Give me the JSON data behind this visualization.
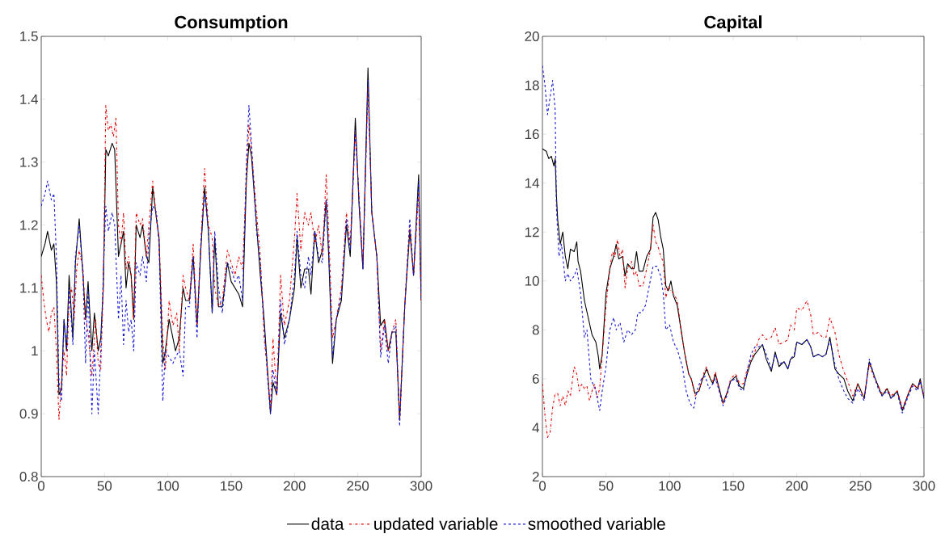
{
  "chart_data": [
    {
      "type": "line",
      "title": "Consumption",
      "xlim": [
        0,
        300
      ],
      "ylim": [
        0.8,
        1.5
      ],
      "xticks": [
        0,
        50,
        100,
        150,
        200,
        250,
        300
      ],
      "yticks": [
        0.8,
        0.9,
        1,
        1.1,
        1.2,
        1.3,
        1.4,
        1.5
      ],
      "legend": "bottom",
      "series": [
        {
          "name": "data",
          "color": "#000000",
          "line_style": "solid",
          "x": [
            0,
            3,
            5,
            8,
            10,
            12,
            14,
            16,
            18,
            20,
            22,
            25,
            27,
            30,
            33,
            35,
            37,
            40,
            42,
            45,
            47,
            49,
            51,
            53,
            56,
            58,
            61,
            63,
            65,
            67,
            69,
            71,
            73,
            75,
            78,
            80,
            83,
            85,
            88,
            91,
            93,
            96,
            98,
            101,
            104,
            106,
            109,
            112,
            114,
            117,
            120,
            123,
            126,
            129,
            132,
            135,
            137,
            140,
            143,
            147,
            150,
            153,
            156,
            159,
            162,
            164,
            166,
            170,
            173,
            176,
            179,
            181,
            183,
            186,
            189,
            192,
            196,
            200,
            202,
            205,
            208,
            211,
            213,
            216,
            219,
            222,
            225,
            227,
            230,
            233,
            237,
            241,
            244,
            248,
            251,
            254,
            258,
            261,
            265,
            268,
            271,
            274,
            277,
            280,
            283,
            287,
            291,
            294,
            298,
            300
          ],
          "values": [
            1.15,
            1.17,
            1.19,
            1.16,
            1.17,
            1.11,
            0.93,
            0.94,
            1.05,
            1.0,
            1.12,
            1.02,
            1.14,
            1.21,
            1.12,
            1.05,
            1.11,
            1.0,
            1.06,
            1.0,
            1.02,
            1.1,
            1.32,
            1.31,
            1.33,
            1.32,
            1.15,
            1.17,
            1.19,
            1.1,
            1.14,
            1.12,
            1.05,
            1.2,
            1.18,
            1.2,
            1.15,
            1.14,
            1.26,
            1.21,
            1.18,
            0.98,
            1.0,
            1.05,
            1.02,
            1.0,
            1.02,
            1.1,
            1.08,
            1.08,
            1.15,
            1.04,
            1.16,
            1.26,
            1.19,
            1.06,
            1.18,
            1.07,
            1.07,
            1.14,
            1.11,
            1.1,
            1.09,
            1.07,
            1.27,
            1.33,
            1.31,
            1.2,
            1.12,
            1.05,
            0.96,
            0.9,
            0.95,
            0.93,
            1.06,
            1.02,
            1.05,
            1.1,
            1.18,
            1.1,
            1.13,
            1.13,
            1.09,
            1.19,
            1.14,
            1.16,
            1.24,
            1.15,
            0.98,
            1.05,
            1.08,
            1.2,
            1.15,
            1.37,
            1.23,
            1.13,
            1.45,
            1.22,
            1.15,
            1.04,
            1.05,
            1.0,
            1.03,
            1.03,
            0.89,
            1.07,
            1.19,
            1.12,
            1.28,
            1.08
          ]
        },
        {
          "name": "updated variable",
          "color": "#e00000",
          "line_style": "dashdot",
          "x": [
            0,
            2,
            4,
            6,
            8,
            10,
            12,
            14,
            16,
            18,
            20,
            22,
            24,
            26,
            28,
            30,
            33,
            35,
            37,
            40,
            43,
            45,
            47,
            49,
            51,
            53,
            55,
            57,
            59,
            61,
            63,
            65,
            67,
            69,
            71,
            73,
            75,
            78,
            80,
            83,
            85,
            88,
            91,
            93,
            96,
            98,
            101,
            104,
            107,
            109,
            112,
            114,
            117,
            120,
            123,
            126,
            129,
            132,
            135,
            137,
            140,
            143,
            147,
            150,
            153,
            156,
            159,
            162,
            164,
            166,
            170,
            173,
            176,
            179,
            181,
            183,
            186,
            189,
            192,
            196,
            200,
            202,
            205,
            208,
            211,
            213,
            216,
            219,
            222,
            225,
            227,
            230,
            233,
            237,
            241,
            244,
            248,
            251,
            254,
            258,
            261,
            265,
            268,
            271,
            274,
            277,
            280,
            283,
            287,
            291,
            294,
            298,
            300
          ],
          "values": [
            1.12,
            1.08,
            1.05,
            1.03,
            1.06,
            1.07,
            1.0,
            0.89,
            0.95,
            1.0,
            0.96,
            1.08,
            1.1,
            1.05,
            1.13,
            1.16,
            1.13,
            1.05,
            1.03,
            0.96,
            1.05,
            0.98,
            0.97,
            1.1,
            1.39,
            1.35,
            1.36,
            1.34,
            1.37,
            1.2,
            1.17,
            1.22,
            1.13,
            1.15,
            1.12,
            1.05,
            1.22,
            1.2,
            1.21,
            1.15,
            1.2,
            1.27,
            1.21,
            1.18,
            1.02,
            0.97,
            1.08,
            1.04,
            1.06,
            1.0,
            1.12,
            1.1,
            1.08,
            1.17,
            1.04,
            1.17,
            1.29,
            1.2,
            1.18,
            1.1,
            1.07,
            1.08,
            1.16,
            1.14,
            1.12,
            1.15,
            1.13,
            1.28,
            1.36,
            1.32,
            1.22,
            1.15,
            1.02,
            0.96,
            0.91,
            1.02,
            0.93,
            1.12,
            1.04,
            1.08,
            1.18,
            1.25,
            1.16,
            1.22,
            1.2,
            1.22,
            1.17,
            1.2,
            1.15,
            1.28,
            1.19,
            1.02,
            1.05,
            1.1,
            1.22,
            1.17,
            1.35,
            1.24,
            1.14,
            1.42,
            1.22,
            1.15,
            1.0,
            1.05,
            1.0,
            1.03,
            1.05,
            0.89,
            1.07,
            1.2,
            1.12,
            1.25,
            1.08
          ]
        },
        {
          "name": "smoothed variable",
          "color": "#1a1ad6",
          "line_style": "dashed",
          "x": [
            0,
            3,
            5,
            8,
            10,
            12,
            14,
            16,
            18,
            20,
            22,
            25,
            27,
            30,
            33,
            35,
            37,
            40,
            42,
            45,
            47,
            49,
            51,
            53,
            56,
            58,
            61,
            63,
            65,
            67,
            69,
            71,
            73,
            75,
            78,
            80,
            83,
            85,
            88,
            91,
            93,
            96,
            98,
            101,
            104,
            106,
            109,
            112,
            114,
            117,
            120,
            123,
            126,
            129,
            132,
            135,
            137,
            140,
            143,
            147,
            150,
            153,
            156,
            159,
            162,
            164,
            166,
            170,
            173,
            176,
            179,
            181,
            183,
            186,
            189,
            192,
            196,
            200,
            202,
            205,
            208,
            211,
            213,
            216,
            219,
            222,
            225,
            227,
            230,
            233,
            237,
            241,
            244,
            248,
            251,
            254,
            258,
            261,
            265,
            268,
            271,
            274,
            277,
            280,
            283,
            287,
            291,
            294,
            298,
            300
          ],
          "values": [
            1.23,
            1.25,
            1.27,
            1.24,
            1.25,
            1.15,
            0.95,
            0.92,
            1.05,
            1.0,
            1.1,
            1.01,
            1.15,
            1.2,
            1.12,
            0.98,
            1.1,
            0.9,
            1.0,
            0.9,
            1.0,
            1.12,
            1.23,
            1.19,
            1.22,
            1.2,
            1.05,
            1.12,
            1.01,
            1.08,
            1.03,
            1.05,
            1.0,
            1.14,
            1.12,
            1.15,
            1.11,
            1.18,
            1.23,
            1.22,
            1.17,
            0.92,
            1.0,
            0.99,
            0.98,
            0.99,
            1.0,
            0.96,
            1.07,
            1.07,
            1.15,
            1.02,
            1.17,
            1.25,
            1.19,
            1.06,
            1.19,
            1.1,
            1.06,
            1.14,
            1.13,
            1.11,
            1.12,
            1.08,
            1.3,
            1.39,
            1.33,
            1.19,
            1.14,
            1.04,
            0.95,
            0.9,
            0.97,
            0.93,
            1.08,
            1.01,
            1.05,
            1.12,
            1.19,
            1.12,
            1.1,
            1.15,
            1.12,
            1.19,
            1.15,
            1.14,
            1.24,
            1.16,
            0.99,
            1.05,
            1.09,
            1.21,
            1.16,
            1.35,
            1.24,
            1.13,
            1.43,
            1.22,
            1.15,
            0.99,
            1.04,
            0.98,
            1.03,
            1.04,
            0.88,
            1.07,
            1.21,
            1.12,
            1.27,
            1.08
          ]
        }
      ]
    },
    {
      "type": "line",
      "title": "Capital",
      "xlim": [
        0,
        300
      ],
      "ylim": [
        2,
        20
      ],
      "xticks": [
        0,
        50,
        100,
        150,
        200,
        250,
        300
      ],
      "yticks": [
        2,
        4,
        6,
        8,
        10,
        12,
        14,
        16,
        18,
        20
      ],
      "series": [
        {
          "color": "#000000",
          "line_style": "solid",
          "x": [
            0,
            3,
            5,
            7,
            9,
            10,
            11,
            12,
            14,
            16,
            18,
            20,
            22,
            25,
            27,
            28,
            30,
            33,
            36,
            39,
            42,
            44,
            45,
            47,
            50,
            53,
            56,
            58,
            60,
            63,
            65,
            67,
            70,
            72,
            74,
            76,
            79,
            82,
            85,
            87,
            89,
            91,
            93,
            95,
            97,
            99,
            101,
            103,
            106,
            109,
            112,
            115,
            117,
            120,
            123,
            126,
            129,
            132,
            134,
            136,
            139,
            142,
            145,
            148,
            152,
            155,
            158,
            161,
            164,
            167,
            170,
            173,
            176,
            180,
            183,
            186,
            190,
            193,
            195,
            198,
            200,
            204,
            208,
            211,
            213,
            217,
            220,
            223,
            226,
            230,
            233,
            237,
            240,
            244,
            248,
            253,
            257,
            261,
            264,
            267,
            271,
            274,
            279,
            283,
            287,
            291,
            295,
            297,
            300
          ],
          "values": [
            15.4,
            15.3,
            15.0,
            15.1,
            14.7,
            15.0,
            13.5,
            12.5,
            11.5,
            12.0,
            11.0,
            10.5,
            11.3,
            11.2,
            11.6,
            10.8,
            10.4,
            9.2,
            8.5,
            7.8,
            7.5,
            6.9,
            6.4,
            7.0,
            9.5,
            10.5,
            11.0,
            11.5,
            10.9,
            11.0,
            10.2,
            10.7,
            10.5,
            10.5,
            11.2,
            10.4,
            10.4,
            11.0,
            11.3,
            12.6,
            12.8,
            12.5,
            11.8,
            11.3,
            9.8,
            9.6,
            10.0,
            9.4,
            9.0,
            8.0,
            7.0,
            6.2,
            6.0,
            5.4,
            5.5,
            6.0,
            6.4,
            6.0,
            5.8,
            6.2,
            5.6,
            5.0,
            5.4,
            5.9,
            6.1,
            5.7,
            5.6,
            6.2,
            6.7,
            7.0,
            7.2,
            7.4,
            6.8,
            6.3,
            7.1,
            6.5,
            6.7,
            6.4,
            6.8,
            6.9,
            7.5,
            7.4,
            7.6,
            7.3,
            6.9,
            7.0,
            6.9,
            7.0,
            7.7,
            6.4,
            6.2,
            6.0,
            5.5,
            5.1,
            5.8,
            5.2,
            6.7,
            6.1,
            5.7,
            5.3,
            5.6,
            5.2,
            5.5,
            4.7,
            5.3,
            5.8,
            5.6,
            6.0,
            5.2
          ]
        },
        {
          "color": "#e00000",
          "line_style": "dashdot",
          "x": [
            0,
            2,
            4,
            6,
            8,
            10,
            12,
            14,
            16,
            18,
            20,
            22,
            25,
            27,
            29,
            31,
            33,
            35,
            37,
            39,
            41,
            43,
            45,
            47,
            50,
            53,
            55,
            57,
            59,
            61,
            63,
            65,
            67,
            70,
            72,
            74,
            76,
            79,
            82,
            85,
            87,
            89,
            91,
            93,
            95,
            97,
            99,
            101,
            103,
            106,
            109,
            112,
            115,
            117,
            120,
            123,
            126,
            129,
            132,
            134,
            136,
            139,
            142,
            145,
            148,
            152,
            155,
            158,
            161,
            164,
            167,
            170,
            173,
            176,
            180,
            183,
            186,
            190,
            193,
            195,
            198,
            200,
            204,
            208,
            211,
            213,
            217,
            220,
            223,
            226,
            230,
            233,
            237,
            240,
            244,
            248,
            253,
            257,
            261,
            264,
            267,
            271,
            274,
            279,
            283,
            287,
            291,
            295,
            297,
            300
          ],
          "values": [
            5.8,
            4.5,
            3.6,
            3.8,
            4.8,
            5.4,
            5.4,
            4.9,
            5.3,
            4.9,
            5.5,
            5.3,
            6.5,
            6.2,
            5.5,
            5.8,
            5.6,
            5.7,
            5.1,
            5.5,
            5.8,
            5.2,
            5.6,
            7.0,
            9.0,
            10.5,
            11.2,
            11.0,
            11.7,
            11.0,
            11.3,
            9.7,
            10.5,
            10.8,
            10.2,
            10.4,
            9.8,
            9.8,
            10.5,
            11.3,
            12.3,
            11.6,
            11.4,
            11.0,
            10.8,
            9.3,
            9.8,
            9.6,
            9.5,
            9.2,
            8.0,
            7.0,
            6.2,
            6.0,
            5.3,
            5.5,
            6.1,
            6.5,
            6.0,
            5.9,
            6.3,
            5.5,
            5.0,
            5.4,
            6.0,
            6.2,
            5.8,
            5.8,
            6.4,
            6.8,
            7.1,
            7.6,
            7.8,
            7.6,
            7.7,
            8.1,
            7.4,
            7.5,
            7.6,
            8.2,
            8.0,
            8.9,
            8.8,
            9.2,
            8.6,
            7.8,
            7.9,
            7.7,
            7.7,
            8.5,
            7.9,
            7.0,
            6.3,
            5.9,
            5.3,
            5.8,
            5.2,
            6.6,
            6.0,
            5.7,
            5.4,
            5.6,
            5.3,
            5.5,
            4.8,
            5.3,
            5.8,
            5.6,
            5.9,
            5.3
          ]
        },
        {
          "color": "#1a1ad6",
          "line_style": "dashed",
          "x": [
            0,
            2,
            4,
            6,
            8,
            10,
            11,
            13,
            15,
            18,
            20,
            22,
            25,
            27,
            30,
            33,
            35,
            38,
            42,
            45,
            47,
            50,
            53,
            56,
            58,
            61,
            64,
            67,
            70,
            73,
            75,
            78,
            81,
            84,
            87,
            90,
            93,
            95,
            97,
            100,
            103,
            106,
            110,
            113,
            116,
            119,
            122,
            125,
            128,
            131,
            134,
            136,
            139,
            142,
            145,
            148,
            152,
            155,
            158,
            161,
            164,
            167,
            170,
            173,
            176,
            180,
            183,
            186,
            190,
            193,
            195,
            198,
            200,
            204,
            208,
            211,
            213,
            217,
            220,
            223,
            226,
            230,
            233,
            237,
            240,
            244,
            248,
            253,
            257,
            261,
            264,
            267,
            271,
            274,
            279,
            283,
            287,
            291,
            295,
            297,
            300
          ],
          "values": [
            18.8,
            18.0,
            16.8,
            17.5,
            18.2,
            17.0,
            13.0,
            11.0,
            11.5,
            10.0,
            10.3,
            10.0,
            10.2,
            10.5,
            9.5,
            7.7,
            8.0,
            6.0,
            5.5,
            4.7,
            5.5,
            6.5,
            8.0,
            8.5,
            8.0,
            8.3,
            7.5,
            8.0,
            7.8,
            8.0,
            8.7,
            8.7,
            9.0,
            9.8,
            10.6,
            10.6,
            10.2,
            9.5,
            8.0,
            8.2,
            7.5,
            7.2,
            6.5,
            5.5,
            5.0,
            4.8,
            5.6,
            6.0,
            6.1,
            5.6,
            5.8,
            6.0,
            5.5,
            4.9,
            5.3,
            5.9,
            6.0,
            5.6,
            5.5,
            6.3,
            7.0,
            7.3,
            7.3,
            7.4,
            7.0,
            6.4,
            7.0,
            6.6,
            6.7,
            6.4,
            6.8,
            7.0,
            7.5,
            7.4,
            7.6,
            7.3,
            6.9,
            7.0,
            6.9,
            7.0,
            7.6,
            6.6,
            6.0,
            5.5,
            5.2,
            5.0,
            5.6,
            5.1,
            6.8,
            6.1,
            5.6,
            5.3,
            5.5,
            5.2,
            5.4,
            4.6,
            5.2,
            5.7,
            5.5,
            5.9,
            5.2
          ]
        }
      ]
    }
  ]
}
